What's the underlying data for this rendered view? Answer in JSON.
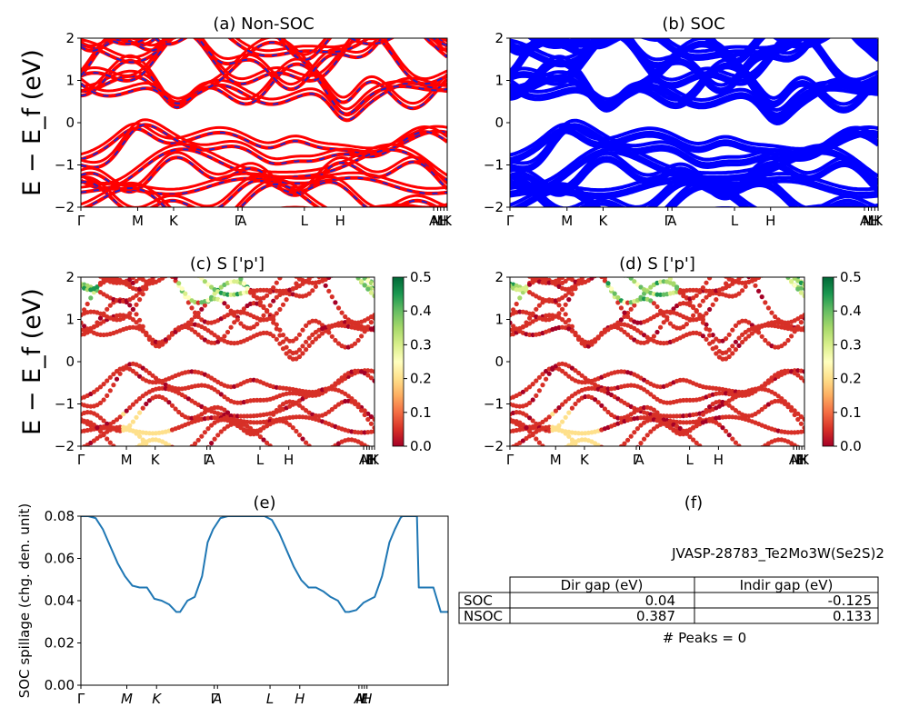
{
  "chart_data": [
    {
      "type": "line",
      "title": "(a) Non-SOC",
      "ylabel": "E − E_f (eV)",
      "ylim": [
        -2,
        2
      ],
      "yticks": [
        "−2",
        "−1",
        "0",
        "1",
        "2"
      ],
      "kpoints": [
        "Γ",
        "M",
        "K",
        "Γ",
        "A",
        "L",
        "H",
        "A",
        "M",
        "L",
        "H",
        "K"
      ],
      "kpoint_positions": [
        0,
        0.155,
        0.253,
        0.429,
        0.44,
        0.61,
        0.708,
        0.963,
        0.974,
        0.982,
        0.991,
        1.0
      ],
      "series": [
        {
          "color": "#ff0000"
        },
        {
          "color": "#2222cc"
        }
      ],
      "grid": false
    },
    {
      "type": "line",
      "title": "(b) SOC",
      "ylim": [
        -2,
        2
      ],
      "yticks": [
        "−2",
        "−1",
        "0",
        "1",
        "2"
      ],
      "kpoints": [
        "Γ",
        "M",
        "K",
        "Γ",
        "A",
        "L",
        "H",
        "A",
        "M",
        "L",
        "H",
        "K"
      ],
      "kpoint_positions": [
        0,
        0.155,
        0.253,
        0.429,
        0.44,
        0.61,
        0.708,
        0.963,
        0.974,
        0.982,
        0.991,
        1.0
      ],
      "series": [
        {
          "color": "#0000ff"
        }
      ],
      "grid": false
    },
    {
      "type": "scatter",
      "title": "(c)  S ['p']",
      "ylabel": "E − E_f (eV)",
      "ylim": [
        -2,
        2
      ],
      "yticks": [
        "−2",
        "−1",
        "0",
        "1",
        "2"
      ],
      "kpoints": [
        "Γ",
        "M",
        "K",
        "Γ",
        "A",
        "L",
        "H",
        "A",
        "M",
        "L",
        "H",
        "K"
      ],
      "kpoint_positions": [
        0,
        0.155,
        0.253,
        0.429,
        0.44,
        0.61,
        0.708,
        0.963,
        0.974,
        0.982,
        0.991,
        1.0
      ],
      "colorbar": {
        "min": 0.0,
        "max": 0.5,
        "ticks": [
          "0.0",
          "0.1",
          "0.2",
          "0.3",
          "0.4",
          "0.5"
        ],
        "colormap": "RdYlGn"
      }
    },
    {
      "type": "scatter",
      "title": "(d) S ['p']",
      "ylim": [
        -2,
        2
      ],
      "yticks": [
        "−2",
        "−1",
        "0",
        "1",
        "2"
      ],
      "kpoints": [
        "Γ",
        "M",
        "K",
        "Γ",
        "A",
        "L",
        "H",
        "A",
        "M",
        "L",
        "H",
        "K"
      ],
      "kpoint_positions": [
        0,
        0.155,
        0.253,
        0.429,
        0.44,
        0.61,
        0.708,
        0.963,
        0.974,
        0.982,
        0.991,
        1.0
      ],
      "colorbar": {
        "min": 0.0,
        "max": 0.5,
        "ticks": [
          "0.0",
          "0.1",
          "0.2",
          "0.3",
          "0.4",
          "0.5"
        ],
        "colormap": "RdYlGn"
      }
    },
    {
      "type": "line",
      "title": "(e)",
      "ylabel": "SOC spillage (chg. den. unit)",
      "ylim": [
        0,
        0.09
      ],
      "yticks": [
        "0.00",
        "0.02",
        "0.04",
        "0.06",
        "0.08"
      ],
      "kpoints": [
        "Γ",
        "M",
        "K",
        "Γ",
        "A",
        "L",
        "H",
        "A",
        "M",
        "L",
        "H"
      ],
      "kpoint_positions": [
        0,
        0.125,
        0.206,
        0.363,
        0.372,
        0.515,
        0.596,
        0.757,
        0.765,
        0.772,
        0.779
      ],
      "series": [
        {
          "color": "#1f77b4",
          "x": [
            0,
            0.02,
            0.04,
            0.06,
            0.08,
            0.1,
            0.12,
            0.14,
            0.16,
            0.18,
            0.19,
            0.2,
            0.22,
            0.24,
            0.26,
            0.27,
            0.29,
            0.31,
            0.33,
            0.345,
            0.36,
            0.38,
            0.4,
            0.45,
            0.5,
            0.52,
            0.54,
            0.56,
            0.58,
            0.6,
            0.62,
            0.64,
            0.66,
            0.68,
            0.7,
            0.71,
            0.72,
            0.73,
            0.75,
            0.77,
            0.79,
            0.8,
            0.82,
            0.84,
            0.855,
            0.87,
            0.875,
            0.88,
            0.9,
            0.915,
            0.92,
            0.94,
            0.96,
            0.98,
            1.0
          ],
          "values": [
            0.09,
            0.09,
            0.089,
            0.083,
            0.074,
            0.065,
            0.058,
            0.053,
            0.052,
            0.052,
            0.049,
            0.046,
            0.045,
            0.043,
            0.039,
            0.039,
            0.045,
            0.047,
            0.058,
            0.076,
            0.083,
            0.089,
            0.09,
            0.09,
            0.09,
            0.088,
            0.081,
            0.072,
            0.063,
            0.056,
            0.052,
            0.052,
            0.05,
            0.047,
            0.045,
            0.042,
            0.039,
            0.039,
            0.04,
            0.044,
            0.046,
            0.047,
            0.058,
            0.076,
            0.083,
            0.089,
            0.09,
            0.09,
            0.09,
            0.09,
            0.052,
            0.052,
            0.052,
            0.039,
            0.039
          ]
        }
      ],
      "grid": false
    }
  ],
  "panel_f": {
    "title": "(f)",
    "name": "JVASP-28783_Te2Mo3W(Se2S)2",
    "columns": [
      "Dir gap (eV)",
      "Indir gap (eV)"
    ],
    "rows": [
      {
        "label": "SOC",
        "dir": "0.04",
        "indir": "-0.125"
      },
      {
        "label": "NSOC",
        "dir": "0.387",
        "indir": "0.133"
      }
    ],
    "peaks": "# Peaks = 0"
  }
}
